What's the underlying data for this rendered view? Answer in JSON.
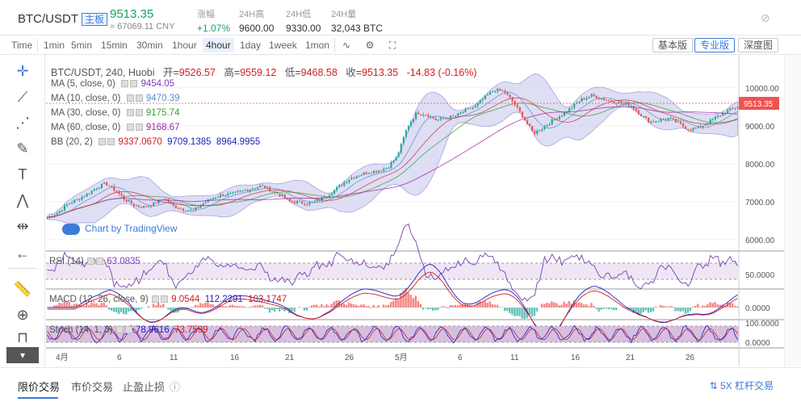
{
  "header": {
    "pair": "BTC/USDT",
    "badge": "主板",
    "price": "9513.35",
    "price_cny": "≈ 67069.11 CNY",
    "stats": [
      {
        "label": "涨幅",
        "value": "+1.07%",
        "color": "green"
      },
      {
        "label": "24H高",
        "value": "9600.00"
      },
      {
        "label": "24H低",
        "value": "9330.00"
      },
      {
        "label": "24H量",
        "value": "32,043 BTC"
      }
    ]
  },
  "toolbar": {
    "intervals": [
      "Time",
      "1min",
      "5min",
      "15min",
      "30min",
      "1hour",
      "4hour",
      "1day",
      "1week",
      "1mon"
    ],
    "active_interval": "4hour",
    "views": [
      "基本版",
      "专业版",
      "深度图"
    ],
    "active_view": "专业版"
  },
  "legend": {
    "title": "BTC/USDT, 240, Huobi",
    "open_label": "开=",
    "open": "9526.57",
    "high_label": "高=",
    "high": "9559.12",
    "low_label": "低=",
    "low": "9468.58",
    "close_label": "收=",
    "close": "9513.35",
    "change": "-14.83 (-0.16%)",
    "studies": [
      {
        "name": "MA (5, close, 0)",
        "value": "9454.05",
        "color": "#7a3fb0"
      },
      {
        "name": "MA (10, close, 0)",
        "value": "9470.39",
        "color": "#5b8ec9"
      },
      {
        "name": "MA (30, close, 0)",
        "value": "9175.74",
        "color": "#3a9e3a"
      },
      {
        "name": "MA (60, close, 0)",
        "value": "9168.67",
        "color": "#a0269e"
      },
      {
        "name": "BB (20, 2)",
        "values": [
          "9337.0670",
          "9709.1385",
          "8964.9955"
        ],
        "colors": [
          "#d02020",
          "#2020c0",
          "#2020c0"
        ]
      }
    ],
    "rsi": {
      "name": "RSI (14)",
      "value": "63.0835"
    },
    "macd": {
      "name": "MACD (12, 26, close, 9)",
      "values": [
        "9.0544",
        "112.2291",
        "103.1747"
      ]
    },
    "stoch": {
      "name": "Stoch (14, 1, 3)",
      "values": [
        "78.9616",
        "73.7599"
      ]
    }
  },
  "watermark": "Chart by TradingView",
  "price_axis": [
    "10000.00",
    "9000.00",
    "8000.00",
    "7000.00",
    "6000.00"
  ],
  "current_price_tag": "9513.35",
  "rsi_axis": "50.0000",
  "macd_axis": "0.0000",
  "stoch_axis": [
    "100.0000",
    "0.0000"
  ],
  "time_axis": [
    "4月",
    "6",
    "11",
    "16",
    "21",
    "26",
    "5月",
    "6",
    "11",
    "16",
    "21",
    "26"
  ],
  "footer": {
    "tabs": [
      "限价交易",
      "市价交易",
      "止盈止损"
    ],
    "leverage": "5X 杠杆交易"
  },
  "colors": {
    "up": "#26a69a",
    "down": "#ef5350",
    "accent": "#3d7bd9",
    "band": "#c9c9ee"
  },
  "chart_data": {
    "type": "candlestick",
    "close_path": [
      6580,
      6700,
      6920,
      7050,
      7180,
      7360,
      7480,
      7300,
      7050,
      6900,
      6860,
      6950,
      7100,
      6880,
      6800,
      6750,
      6960,
      7100,
      7180,
      7200,
      7280,
      7350,
      7420,
      7300,
      7180,
      7000,
      6980,
      6950,
      7050,
      7200,
      7400,
      7600,
      7700,
      7780,
      7820,
      7900,
      8200,
      8950,
      9350,
      9300,
      9150,
      9200,
      9260,
      9400,
      9500,
      9750,
      9950,
      9900,
      9600,
      9200,
      8800,
      8950,
      9150,
      9300,
      9500,
      9700,
      9800,
      9720,
      9650,
      9600,
      9550,
      9300,
      9100,
      9150,
      9200,
      9050,
      8900,
      8950,
      9100,
      9250,
      9400,
      9513
    ]
  }
}
